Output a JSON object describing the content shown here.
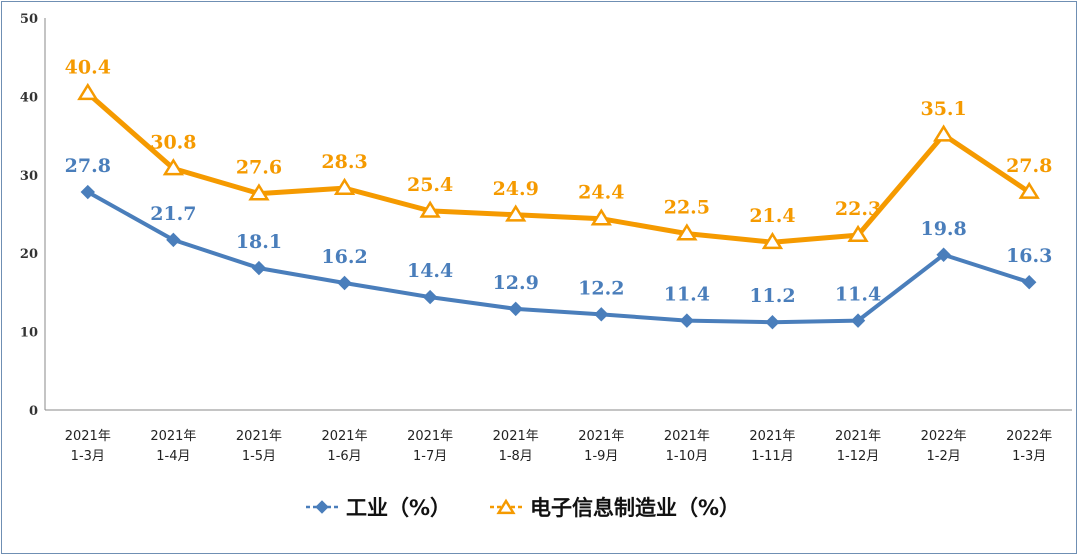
{
  "chart_data": {
    "type": "line",
    "categories": [
      [
        "2021年",
        "1-3月"
      ],
      [
        "2021年",
        "1-4月"
      ],
      [
        "2021年",
        "1-5月"
      ],
      [
        "2021年",
        "1-6月"
      ],
      [
        "2021年",
        "1-7月"
      ],
      [
        "2021年",
        "1-8月"
      ],
      [
        "2021年",
        "1-9月"
      ],
      [
        "2021年",
        "1-10月"
      ],
      [
        "2021年",
        "1-11月"
      ],
      [
        "2021年",
        "1-12月"
      ],
      [
        "2022年",
        "1-2月"
      ],
      [
        "2022年",
        "1-3月"
      ]
    ],
    "series": [
      {
        "name": "工业（%）",
        "color": "#4a7ebb",
        "marker": "diamond",
        "values": [
          27.8,
          21.7,
          18.1,
          16.2,
          14.4,
          12.9,
          12.2,
          11.4,
          11.2,
          11.4,
          19.8,
          16.3
        ]
      },
      {
        "name": "电子信息制造业（%）",
        "color": "#f59a00",
        "marker": "triangle",
        "values": [
          40.4,
          30.8,
          27.6,
          28.3,
          25.4,
          24.9,
          24.4,
          22.5,
          21.4,
          22.3,
          35.1,
          27.8
        ]
      }
    ],
    "ylim": [
      0,
      50
    ],
    "yticks": [
      0,
      10,
      20,
      30,
      40,
      50
    ],
    "grid": false,
    "legend": "bottom-center"
  }
}
